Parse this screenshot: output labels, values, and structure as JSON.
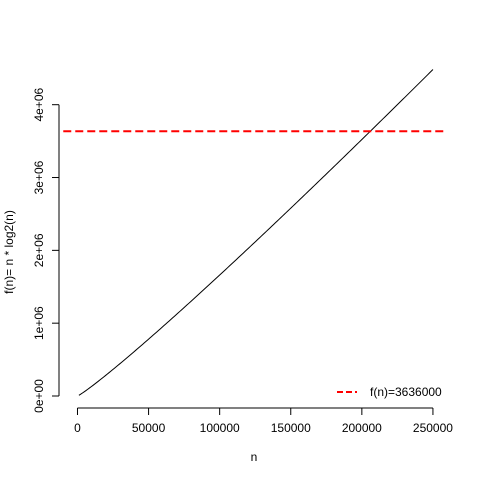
{
  "chart_data": {
    "type": "line",
    "xlabel": "n",
    "ylabel": "f(n)= n * log2(n)",
    "xlim": [
      0,
      250000
    ],
    "ylim": [
      0,
      4000000
    ],
    "x_ticks": [
      0,
      50000,
      100000,
      150000,
      200000,
      250000
    ],
    "x_tick_labels": [
      "0",
      "50000",
      "100000",
      "150000",
      "200000",
      "250000"
    ],
    "y_ticks": [
      0,
      1000000,
      2000000,
      3000000,
      4000000
    ],
    "y_tick_labels": [
      "0e+00",
      "1e+06",
      "2e+06",
      "3e+06",
      "4e+06"
    ],
    "grid": false,
    "series": [
      {
        "color": "#000000",
        "function": "n*log2(n)",
        "x_range": [
          1000,
          250000
        ]
      }
    ],
    "hline": {
      "y": 3636000,
      "color": "#ff0000",
      "style": "dashed",
      "x_range": [
        -10000,
        260000
      ]
    },
    "legend": {
      "position": "bottom-right",
      "entries": [
        {
          "label": "f(n)=3636000",
          "color": "#ff0000",
          "style": "dashed"
        }
      ]
    }
  }
}
